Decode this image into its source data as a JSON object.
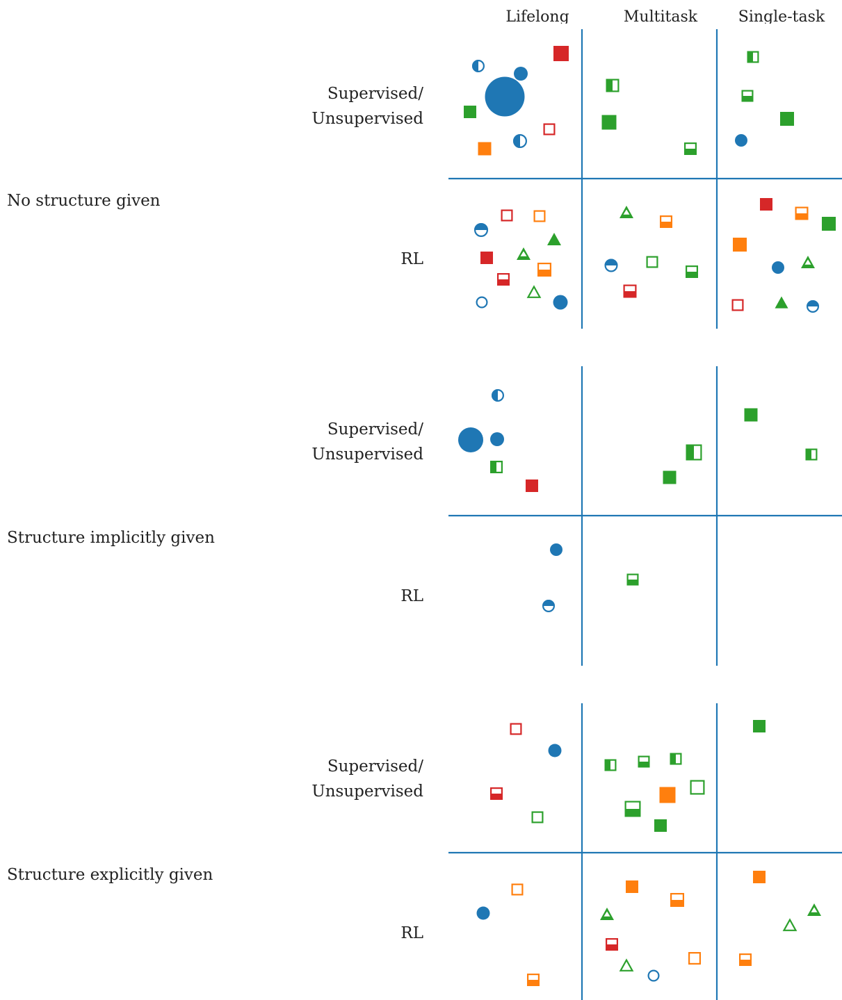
{
  "columns": [
    "Lifelong",
    "Multitask",
    "Single-task"
  ],
  "rows": [
    {
      "label": "No structure given",
      "sublabels": [
        "Supervised/\nUnsupervised",
        "RL"
      ]
    },
    {
      "label": "Structure implicitly given",
      "sublabels": [
        "Supervised/\nUnsupervised",
        "RL"
      ]
    },
    {
      "label": "Structure explicitly given",
      "sublabels": [
        "Supervised/\nUnsupervised",
        "RL"
      ]
    }
  ],
  "colors": {
    "blue": "#1f77b4",
    "red": "#d62728",
    "green": "#2ca02c",
    "orange": "#ff7f0e",
    "grid": "#1f77b4"
  },
  "marker_legend": {
    "shape": {
      "circle": "circle",
      "square": "square",
      "triangle": "triangle"
    },
    "fill": {
      "full": "filled",
      "half-left": "left half filled",
      "half-top": "top half filled",
      "half-bottom": "bottom half filled",
      "none": "outline only"
    }
  }
}
